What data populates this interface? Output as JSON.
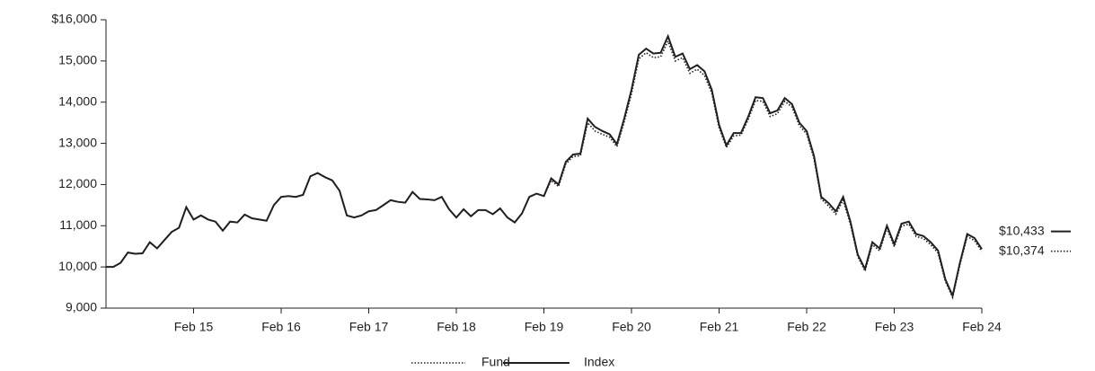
{
  "chart_data": {
    "type": "line",
    "categories": [
      null,
      null,
      null,
      null,
      null,
      null,
      null,
      null,
      null,
      null,
      null,
      null,
      "Feb 15",
      null,
      null,
      null,
      null,
      null,
      null,
      null,
      null,
      null,
      null,
      null,
      "Feb 16",
      null,
      null,
      null,
      null,
      null,
      null,
      null,
      null,
      null,
      null,
      null,
      "Feb 17",
      null,
      null,
      null,
      null,
      null,
      null,
      null,
      null,
      null,
      null,
      null,
      "Feb 18",
      null,
      null,
      null,
      null,
      null,
      null,
      null,
      null,
      null,
      null,
      null,
      "Feb 19",
      null,
      null,
      null,
      null,
      null,
      null,
      null,
      null,
      null,
      null,
      null,
      "Feb 20",
      null,
      null,
      null,
      null,
      null,
      null,
      null,
      null,
      null,
      null,
      null,
      "Feb 21",
      null,
      null,
      null,
      null,
      null,
      null,
      null,
      null,
      null,
      null,
      null,
      "Feb 22",
      null,
      null,
      null,
      null,
      null,
      null,
      null,
      null,
      null,
      null,
      null,
      "Feb 23",
      null,
      null,
      null,
      null,
      null,
      null,
      null,
      null,
      null,
      null,
      null,
      "Feb 24"
    ],
    "series": [
      {
        "name": "Fund",
        "color": "#231f20",
        "style": "dotted",
        "values": [
          10000,
          10000,
          10100,
          10350,
          10320,
          10330,
          10600,
          10450,
          10650,
          10850,
          10950,
          11450,
          11150,
          11250,
          11150,
          11100,
          10880,
          11100,
          11080,
          11270,
          11180,
          11150,
          11120,
          11500,
          11700,
          11720,
          11700,
          11750,
          12200,
          12280,
          12180,
          12100,
          11850,
          11250,
          11200,
          11250,
          11350,
          11380,
          11500,
          11620,
          11580,
          11560,
          11820,
          11650,
          11640,
          11620,
          11700,
          11400,
          11200,
          11400,
          11230,
          11380,
          11380,
          11280,
          11420,
          11200,
          11080,
          11300,
          11700,
          11780,
          11720,
          12100,
          11950,
          12500,
          12680,
          12700,
          13500,
          13300,
          13220,
          13150,
          12920,
          13520,
          14200,
          15050,
          15200,
          15080,
          15100,
          15480,
          15000,
          15080,
          14700,
          14800,
          14650,
          14220,
          13380,
          12900,
          13180,
          13200,
          13580,
          14040,
          14020,
          13650,
          13720,
          14020,
          13880,
          13430,
          13230,
          12630,
          11650,
          11480,
          11280,
          11620,
          11030,
          10250,
          9900,
          10540,
          10390,
          10940,
          10490,
          10990,
          11040,
          10740,
          10690,
          10540,
          10340,
          9650,
          9260,
          10050,
          10740,
          10640,
          10374
        ],
        "value_labels": {
          "120": "$10,374"
        }
      },
      {
        "name": "Index",
        "color": "#231f20",
        "style": "solid",
        "values": [
          10000,
          10000,
          10100,
          10350,
          10320,
          10330,
          10600,
          10450,
          10650,
          10850,
          10950,
          11450,
          11150,
          11250,
          11150,
          11100,
          10880,
          11100,
          11080,
          11270,
          11180,
          11150,
          11120,
          11500,
          11700,
          11720,
          11700,
          11750,
          12200,
          12280,
          12180,
          12100,
          11850,
          11250,
          11200,
          11250,
          11350,
          11380,
          11500,
          11620,
          11580,
          11560,
          11820,
          11650,
          11640,
          11620,
          11700,
          11400,
          11200,
          11400,
          11230,
          11380,
          11380,
          11280,
          11420,
          11200,
          11080,
          11300,
          11700,
          11780,
          11720,
          12150,
          12000,
          12550,
          12730,
          12750,
          13600,
          13400,
          13300,
          13220,
          12980,
          13600,
          14300,
          15150,
          15300,
          15180,
          15200,
          15600,
          15100,
          15180,
          14800,
          14900,
          14750,
          14300,
          13450,
          12950,
          13250,
          13250,
          13650,
          14120,
          14100,
          13730,
          13800,
          14100,
          13950,
          13500,
          13300,
          12700,
          11700,
          11550,
          11350,
          11700,
          11100,
          10300,
          9950,
          10600,
          10450,
          11000,
          10550,
          11050,
          11100,
          10800,
          10750,
          10600,
          10400,
          9700,
          9300,
          10100,
          10800,
          10700,
          10433
        ],
        "value_labels": {
          "120": "$10,433"
        }
      }
    ],
    "ylim": [
      9000,
      16000
    ],
    "yticks": [
      {
        "value": 9000,
        "label": "9,000"
      },
      {
        "value": 10000,
        "label": "10,000"
      },
      {
        "value": 11000,
        "label": "11,000"
      },
      {
        "value": 12000,
        "label": "12,000"
      },
      {
        "value": 13000,
        "label": "13,000"
      },
      {
        "value": 14000,
        "label": "14,000"
      },
      {
        "value": 15000,
        "label": "15,000"
      },
      {
        "value": 16000,
        "label": "$16,000"
      }
    ],
    "legend": "bottom"
  }
}
